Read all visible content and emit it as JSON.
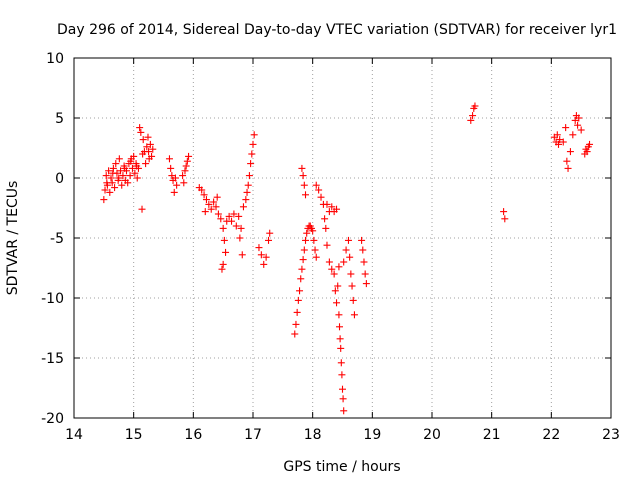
{
  "chart_data": {
    "type": "scatter",
    "title": "Day 296 of 2014, Sidereal Day-to-day VTEC variation (SDTVAR) for receiver lyr1",
    "xlabel": "GPS time / hours",
    "ylabel": "SDTVAR / TECUs",
    "xlim": [
      14,
      23
    ],
    "ylim": [
      -20,
      10
    ],
    "x_ticks": [
      14,
      15,
      16,
      17,
      18,
      19,
      20,
      21,
      22,
      23
    ],
    "y_ticks": [
      -20,
      -15,
      -10,
      -5,
      0,
      5,
      10
    ],
    "x_tick_labels": [
      "14",
      "15",
      "16",
      "17",
      "18",
      "19",
      "20",
      "21",
      "22",
      "23"
    ],
    "y_tick_labels": [
      "-20",
      "-15",
      "-10",
      "-5",
      "0",
      "5",
      "10"
    ],
    "grid": true,
    "marker": "plus",
    "marker_color": "#ff0000",
    "series": [
      {
        "name": "SDTVAR",
        "points": [
          [
            14.5,
            -1.8
          ],
          [
            14.52,
            -1.0
          ],
          [
            14.54,
            0.2
          ],
          [
            14.56,
            -0.6
          ],
          [
            14.58,
            0.6
          ],
          [
            14.6,
            -1.2
          ],
          [
            14.62,
            0.0
          ],
          [
            14.64,
            -0.4
          ],
          [
            14.66,
            0.8
          ],
          [
            14.68,
            -0.8
          ],
          [
            14.7,
            1.2
          ],
          [
            14.72,
            0.4
          ],
          [
            14.74,
            -0.2
          ],
          [
            14.76,
            1.6
          ],
          [
            14.78,
            0.6
          ],
          [
            14.8,
            -0.6
          ],
          [
            14.82,
            0.2
          ],
          [
            14.84,
            1.0
          ],
          [
            14.86,
            -0.2
          ],
          [
            14.88,
            0.6
          ],
          [
            14.9,
            -0.4
          ],
          [
            14.92,
            1.2
          ],
          [
            14.94,
            0.2
          ],
          [
            14.96,
            1.6
          ],
          [
            14.98,
            0.8
          ],
          [
            15.0,
            1.8
          ],
          [
            15.02,
            0.4
          ],
          [
            15.04,
            1.2
          ],
          [
            15.06,
            0.0
          ],
          [
            15.08,
            0.8
          ],
          [
            15.1,
            4.2
          ],
          [
            15.12,
            3.8
          ],
          [
            15.14,
            -2.6
          ],
          [
            15.16,
            3.2
          ],
          [
            15.18,
            2.2
          ],
          [
            15.2,
            1.2
          ],
          [
            15.22,
            2.6
          ],
          [
            15.24,
            3.4
          ],
          [
            15.26,
            1.6
          ],
          [
            15.28,
            2.8
          ],
          [
            15.3,
            1.8
          ],
          [
            15.32,
            2.4
          ],
          [
            14.55,
            -0.4
          ],
          [
            14.65,
            0.4
          ],
          [
            14.75,
            0.0
          ],
          [
            14.85,
            0.8
          ],
          [
            14.95,
            1.4
          ],
          [
            15.05,
            1.0
          ],
          [
            15.15,
            2.0
          ],
          [
            15.25,
            2.2
          ],
          [
            15.6,
            1.6
          ],
          [
            15.62,
            0.8
          ],
          [
            15.64,
            0.2
          ],
          [
            15.66,
            -0.2
          ],
          [
            15.68,
            -1.2
          ],
          [
            15.7,
            0.0
          ],
          [
            15.72,
            -0.6
          ],
          [
            15.82,
            0.2
          ],
          [
            15.84,
            -0.4
          ],
          [
            15.86,
            0.6
          ],
          [
            15.88,
            1.0
          ],
          [
            15.9,
            1.4
          ],
          [
            15.92,
            1.8
          ],
          [
            16.1,
            -0.8
          ],
          [
            16.14,
            -1.0
          ],
          [
            16.18,
            -1.4
          ],
          [
            16.22,
            -1.8
          ],
          [
            16.26,
            -2.2
          ],
          [
            16.3,
            -2.6
          ],
          [
            16.34,
            -2.0
          ],
          [
            16.38,
            -2.4
          ],
          [
            16.42,
            -3.0
          ],
          [
            16.46,
            -3.4
          ],
          [
            16.5,
            -4.2
          ],
          [
            16.52,
            -5.2
          ],
          [
            16.54,
            -6.2
          ],
          [
            16.56,
            -3.6
          ],
          [
            16.6,
            -3.2
          ],
          [
            16.64,
            -3.6
          ],
          [
            16.68,
            -3.0
          ],
          [
            16.72,
            -4.0
          ],
          [
            16.76,
            -3.2
          ],
          [
            16.8,
            -4.2
          ],
          [
            16.82,
            -6.4
          ],
          [
            16.84,
            -2.4
          ],
          [
            16.88,
            -1.8
          ],
          [
            16.9,
            -1.2
          ],
          [
            16.92,
            -0.6
          ],
          [
            16.94,
            0.2
          ],
          [
            16.96,
            1.2
          ],
          [
            16.98,
            2.0
          ],
          [
            17.0,
            2.8
          ],
          [
            17.02,
            3.6
          ],
          [
            16.48,
            -7.6
          ],
          [
            16.5,
            -7.2
          ],
          [
            16.78,
            -5.0
          ],
          [
            16.2,
            -2.8
          ],
          [
            16.4,
            -1.6
          ],
          [
            17.1,
            -5.8
          ],
          [
            17.14,
            -6.4
          ],
          [
            17.18,
            -7.2
          ],
          [
            17.22,
            -6.6
          ],
          [
            17.26,
            -5.2
          ],
          [
            17.28,
            -4.6
          ],
          [
            17.7,
            -13.0
          ],
          [
            17.72,
            -12.2
          ],
          [
            17.74,
            -11.2
          ],
          [
            17.76,
            -10.2
          ],
          [
            17.78,
            -9.4
          ],
          [
            17.8,
            -8.4
          ],
          [
            17.82,
            -7.6
          ],
          [
            17.84,
            -6.8
          ],
          [
            17.86,
            -6.0
          ],
          [
            17.88,
            -5.2
          ],
          [
            17.9,
            -4.6
          ],
          [
            17.92,
            -4.2
          ],
          [
            17.94,
            -4.0
          ],
          [
            17.96,
            -4.0
          ],
          [
            17.98,
            -4.2
          ],
          [
            18.0,
            -4.4
          ],
          [
            18.02,
            -5.2
          ],
          [
            18.04,
            -6.0
          ],
          [
            18.06,
            -6.6
          ],
          [
            17.82,
            0.8
          ],
          [
            17.84,
            0.2
          ],
          [
            17.86,
            -0.6
          ],
          [
            17.88,
            -1.4
          ],
          [
            18.06,
            -0.6
          ],
          [
            18.1,
            -1.0
          ],
          [
            18.14,
            -1.6
          ],
          [
            18.18,
            -2.2
          ],
          [
            18.2,
            -3.4
          ],
          [
            18.22,
            -4.2
          ],
          [
            18.24,
            -5.6
          ],
          [
            18.28,
            -7.0
          ],
          [
            18.32,
            -7.6
          ],
          [
            18.36,
            -8.0
          ],
          [
            18.24,
            -2.2
          ],
          [
            18.28,
            -2.8
          ],
          [
            18.32,
            -2.4
          ],
          [
            18.36,
            -2.8
          ],
          [
            18.4,
            -2.6
          ],
          [
            18.38,
            -9.4
          ],
          [
            18.4,
            -10.4
          ],
          [
            18.42,
            -9.0
          ],
          [
            18.44,
            -7.4
          ],
          [
            18.44,
            -11.4
          ],
          [
            18.45,
            -12.4
          ],
          [
            18.46,
            -13.4
          ],
          [
            18.47,
            -14.2
          ],
          [
            18.48,
            -15.4
          ],
          [
            18.49,
            -16.4
          ],
          [
            18.5,
            -17.6
          ],
          [
            18.51,
            -18.4
          ],
          [
            18.52,
            -19.4
          ],
          [
            18.52,
            -7.0
          ],
          [
            18.56,
            -6.0
          ],
          [
            18.6,
            -5.2
          ],
          [
            18.62,
            -6.6
          ],
          [
            18.64,
            -8.0
          ],
          [
            18.66,
            -9.0
          ],
          [
            18.68,
            -10.2
          ],
          [
            18.7,
            -11.4
          ],
          [
            18.82,
            -5.2
          ],
          [
            18.84,
            -6.0
          ],
          [
            18.86,
            -7.0
          ],
          [
            18.88,
            -8.0
          ],
          [
            18.9,
            -8.8
          ],
          [
            20.65,
            4.8
          ],
          [
            20.68,
            5.2
          ],
          [
            20.7,
            5.8
          ],
          [
            20.72,
            6.0
          ],
          [
            21.2,
            -2.8
          ],
          [
            21.22,
            -3.4
          ],
          [
            22.05,
            3.4
          ],
          [
            22.08,
            3.0
          ],
          [
            22.1,
            3.6
          ],
          [
            22.12,
            2.8
          ],
          [
            22.14,
            3.2
          ],
          [
            22.2,
            3.0
          ],
          [
            22.24,
            4.2
          ],
          [
            22.26,
            1.4
          ],
          [
            22.28,
            0.8
          ],
          [
            22.32,
            2.2
          ],
          [
            22.36,
            3.6
          ],
          [
            22.4,
            4.8
          ],
          [
            22.42,
            5.2
          ],
          [
            22.44,
            4.4
          ],
          [
            22.46,
            5.0
          ],
          [
            22.5,
            4.0
          ],
          [
            22.56,
            2.0
          ],
          [
            22.58,
            2.4
          ],
          [
            22.6,
            2.2
          ],
          [
            22.62,
            2.6
          ],
          [
            22.64,
            2.8
          ]
        ]
      }
    ]
  }
}
